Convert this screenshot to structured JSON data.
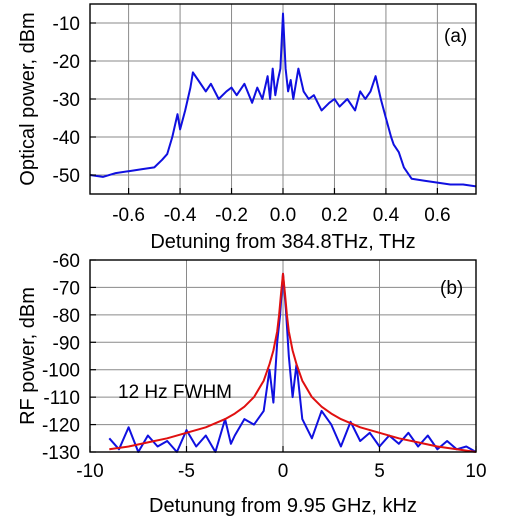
{
  "chart_data": [
    {
      "type": "line",
      "panel_label": "(a)",
      "xlabel": "Detuning from 384.8THz, THz",
      "ylabel": "Optical power, dBm",
      "xlim": [
        -0.75,
        0.75
      ],
      "ylim": [
        -55,
        -5
      ],
      "xticks": [
        -0.6,
        -0.4,
        -0.2,
        0.0,
        0.2,
        0.4,
        0.6
      ],
      "xtick_labels": [
        "-0.6",
        "-0.4",
        "-0.2",
        "0.0",
        "0.2",
        "0.4",
        "0.6"
      ],
      "yticks": [
        -10,
        -20,
        -30,
        -40,
        -50
      ],
      "ytick_labels": [
        "-10",
        "-20",
        "-30",
        "-40",
        "-50"
      ],
      "grid": true,
      "series": [
        {
          "color": "#1010e0",
          "x": [
            -0.75,
            -0.7,
            -0.65,
            -0.6,
            -0.55,
            -0.5,
            -0.47,
            -0.45,
            -0.43,
            -0.41,
            -0.4,
            -0.38,
            -0.36,
            -0.35,
            -0.33,
            -0.3,
            -0.28,
            -0.25,
            -0.22,
            -0.2,
            -0.18,
            -0.15,
            -0.12,
            -0.1,
            -0.08,
            -0.06,
            -0.05,
            -0.04,
            -0.03,
            -0.02,
            -0.01,
            0.0,
            0.01,
            0.02,
            0.03,
            0.04,
            0.06,
            0.08,
            0.1,
            0.12,
            0.15,
            0.18,
            0.2,
            0.22,
            0.25,
            0.28,
            0.3,
            0.32,
            0.34,
            0.36,
            0.37,
            0.38,
            0.4,
            0.42,
            0.43,
            0.45,
            0.47,
            0.5,
            0.55,
            0.6,
            0.65,
            0.7,
            0.75
          ],
          "y": [
            -50,
            -50.5,
            -49.5,
            -49,
            -48.5,
            -48,
            -46,
            -44.5,
            -40,
            -34,
            -38,
            -33,
            -27,
            -23,
            -25,
            -28,
            -26,
            -30,
            -28,
            -27,
            -29,
            -26,
            -31,
            -27,
            -30,
            -24,
            -30,
            -22,
            -29,
            -25,
            -22,
            -7.5,
            -22,
            -28,
            -25,
            -30,
            -22,
            -28,
            -30,
            -29,
            -33,
            -31,
            -30,
            -32,
            -30,
            -33,
            -28,
            -30,
            -28,
            -24,
            -27,
            -30,
            -35,
            -40,
            -42,
            -44,
            -48,
            -51,
            -51.5,
            -52,
            -52.5,
            -52.5,
            -53
          ]
        }
      ]
    },
    {
      "type": "line",
      "panel_label": "(b)",
      "xlabel": "Detunung from 9.95 GHz, kHz",
      "ylabel": "RF power, dBm",
      "xlim": [
        -10,
        10
      ],
      "ylim": [
        -130,
        -60
      ],
      "xticks": [
        -10,
        -5,
        0,
        5,
        10
      ],
      "xtick_labels": [
        "-10",
        "-5",
        "0",
        "5",
        "10"
      ],
      "yticks": [
        -60,
        -70,
        -80,
        -90,
        -100,
        -110,
        -120,
        -130
      ],
      "ytick_labels": [
        "-60",
        "-70",
        "-80",
        "-90",
        "-100",
        "-110",
        "-120",
        "-130"
      ],
      "grid": true,
      "annotation": "12 Hz FWHM",
      "series": [
        {
          "color": "#1010e0",
          "x": [
            -9,
            -8.5,
            -8,
            -7.5,
            -7,
            -6.5,
            -6,
            -5.5,
            -5,
            -4.5,
            -4,
            -3.5,
            -3,
            -2.7,
            -2.5,
            -2,
            -1.5,
            -1,
            -0.7,
            -0.5,
            -0.3,
            -0.15,
            0,
            0.15,
            0.3,
            0.5,
            0.7,
            1,
            1.5,
            2,
            2.5,
            3,
            3.5,
            4,
            4.5,
            5,
            5.5,
            6,
            6.5,
            7,
            7.5,
            8,
            8.5,
            9,
            9.5,
            10
          ],
          "y": [
            -125,
            -129,
            -121,
            -130,
            -124,
            -128,
            -126,
            -130,
            -122,
            -128,
            -124,
            -130,
            -118,
            -127,
            -124,
            -118,
            -120,
            -115,
            -100,
            -112,
            -90,
            -80,
            -65,
            -78,
            -95,
            -110,
            -98,
            -118,
            -125,
            -115,
            -120,
            -128,
            -119,
            -126,
            -123,
            -128,
            -124,
            -127,
            -123,
            -128,
            -124,
            -129,
            -126,
            -129,
            -128,
            -130
          ]
        },
        {
          "color": "#e01010",
          "x": [
            -9,
            -8,
            -7,
            -6,
            -5,
            -4,
            -3,
            -2.5,
            -2,
            -1.5,
            -1,
            -0.7,
            -0.5,
            -0.3,
            -0.2,
            -0.1,
            0,
            0.1,
            0.2,
            0.3,
            0.5,
            0.7,
            1,
            1.5,
            2,
            2.5,
            3,
            4,
            5,
            6,
            7,
            8,
            9,
            10
          ],
          "y": [
            -129,
            -128,
            -126.5,
            -125,
            -123,
            -121,
            -118,
            -116,
            -113.5,
            -110,
            -104,
            -98,
            -93,
            -86,
            -80,
            -72,
            -65,
            -72,
            -80,
            -86,
            -93,
            -98,
            -104,
            -110,
            -113.5,
            -116,
            -118,
            -121,
            -123,
            -125,
            -126.5,
            -128,
            -129,
            -130
          ]
        }
      ]
    }
  ]
}
